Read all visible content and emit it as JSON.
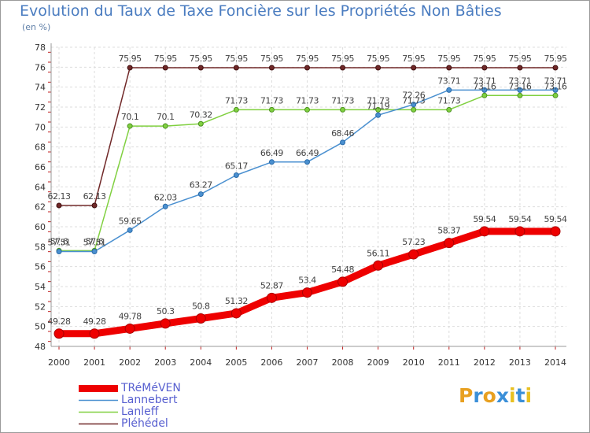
{
  "header": {
    "title": "Evolution du Taux de Taxe Foncière sur les Propriétés Non Bâties",
    "unit": "(en %)"
  },
  "logo": {
    "letters": [
      "P",
      "r",
      "o",
      "x",
      "i",
      "t",
      "i"
    ],
    "colors": [
      "#e8a020",
      "#3a8fd8",
      "#e8a020",
      "#3a8fd8",
      "#e8c020",
      "#3a8fd8",
      "#e8c020"
    ]
  },
  "chart_data": {
    "type": "line",
    "title": "Evolution du Taux de Taxe Foncière sur les Propriétés Non Bâties",
    "ylabel": "(en %)",
    "xlabel": "",
    "ylim": [
      48,
      78
    ],
    "yticks": [
      "48",
      "50",
      "52",
      "54",
      "56",
      "58",
      "60",
      "62",
      "64",
      "66",
      "68",
      "70",
      "72",
      "74",
      "76",
      "78"
    ],
    "categories": [
      "2000",
      "2001",
      "2002",
      "2003",
      "2004",
      "2005",
      "2006",
      "2007",
      "2008",
      "2009",
      "2010",
      "2011",
      "2012",
      "2013",
      "2014"
    ],
    "series": [
      {
        "name": "TRéMéVEN",
        "color": "#ee0000",
        "values": [
          49.28,
          49.28,
          49.78,
          50.3,
          50.8,
          51.32,
          52.87,
          53.4,
          54.48,
          56.11,
          57.23,
          58.37,
          59.54,
          59.54,
          59.54
        ],
        "labels": [
          "49.28",
          "49.28",
          "49.78",
          "50.3",
          "50.8",
          "51.32",
          "52.87",
          "53.4",
          "54.48",
          "56.11",
          "57.23",
          "58.37",
          "59.54",
          "59.54",
          "59.54"
        ]
      },
      {
        "name": "Lannebert",
        "color": "#4a90d0",
        "values": [
          57.51,
          57.51,
          59.65,
          62.03,
          63.27,
          65.17,
          66.49,
          66.49,
          68.46,
          71.19,
          72.26,
          73.71,
          73.71,
          73.71,
          73.71
        ],
        "labels": [
          "57.51",
          "57.51",
          "59.65",
          "62.03",
          "63.27",
          "65.17",
          "66.49",
          "66.49",
          "68.46",
          "71.19",
          "72.26",
          "73.71",
          "73.71",
          "73.71",
          "73.71"
        ]
      },
      {
        "name": "Lanleff",
        "color": "#80d040",
        "values": [
          57.6,
          57.6,
          70.1,
          70.1,
          70.32,
          71.73,
          71.73,
          71.73,
          71.73,
          71.73,
          71.73,
          71.73,
          73.16,
          73.16,
          73.16
        ],
        "labels": [
          "57.6",
          "57.6",
          "70.1",
          "70.1",
          "70.32",
          "71.73",
          "71.73",
          "71.73",
          "71.73",
          "71.73",
          "71.73",
          "71.73",
          "73.16",
          "73.16",
          "73.16"
        ]
      },
      {
        "name": "Pléhédel",
        "color": "#702828",
        "values": [
          62.13,
          62.13,
          75.95,
          75.95,
          75.95,
          75.95,
          75.95,
          75.95,
          75.95,
          75.95,
          75.95,
          75.95,
          75.95,
          75.95,
          75.95
        ],
        "labels": [
          "62.13",
          "62.13",
          "75.95",
          "75.95",
          "75.95",
          "75.95",
          "75.95",
          "75.95",
          "75.95",
          "75.95",
          "75.95",
          "75.95",
          "75.95",
          "75.95",
          "75.95"
        ]
      }
    ]
  }
}
